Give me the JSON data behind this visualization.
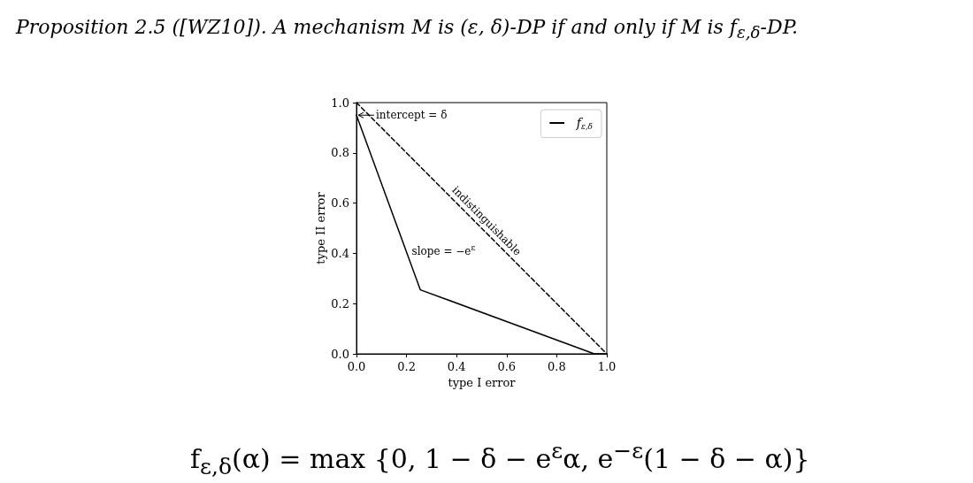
{
  "chart_data": {
    "type": "line",
    "title": "Proposition 2.5 ([WZ10]). A mechanism M is (ε, δ)-DP if and only if M is f$_{ε,δ}$-DP.",
    "xlabel": "type I error",
    "ylabel": "type II error",
    "series": [
      {
        "name": "f$_{ε,δ}$",
        "color": "#000000",
        "x": [
          0,
          0.255,
          0.95,
          1
        ],
        "values": [
          0.95,
          0.255,
          0,
          0
        ],
        "line_style": "solid"
      },
      {
        "color": "#000000",
        "x": [
          0,
          1
        ],
        "values": [
          1,
          0
        ],
        "line_style": "dashed"
      }
    ],
    "xlim": [
      0,
      1
    ],
    "ylim": [
      0,
      1
    ],
    "xticks": [
      {
        "value": 0,
        "label": "0.0"
      },
      {
        "value": 0.2,
        "label": "0.2"
      },
      {
        "value": 0.4,
        "label": "0.4"
      },
      {
        "value": 0.6,
        "label": "0.6"
      },
      {
        "value": 0.8,
        "label": "0.8"
      },
      {
        "value": 1,
        "label": "1.0"
      }
    ],
    "yticks": [
      {
        "value": 0,
        "label": "0.0"
      },
      {
        "value": 0.2,
        "label": "0.2"
      },
      {
        "value": 0.4,
        "label": "0.4"
      },
      {
        "value": 0.6,
        "label": "0.6"
      },
      {
        "value": 0.8,
        "label": "0.8"
      },
      {
        "value": 1,
        "label": "1.0"
      }
    ],
    "grid": false,
    "legend": "top right",
    "marker": "none",
    "annotations": [
      {
        "text": "intercept = δ",
        "x": 0,
        "y": 0.95
      },
      {
        "text": "slope = −e$^{ε}$",
        "x": 0.2,
        "y": 0.41
      },
      {
        "text": "indistinguishable",
        "x": 0.5,
        "y": 0.5
      },
      "f$_{ε,δ}$(α) = max {0, 1 − δ − e$^{ε}$α, e$^{−ε}$(1 − δ − α)}"
    ]
  }
}
